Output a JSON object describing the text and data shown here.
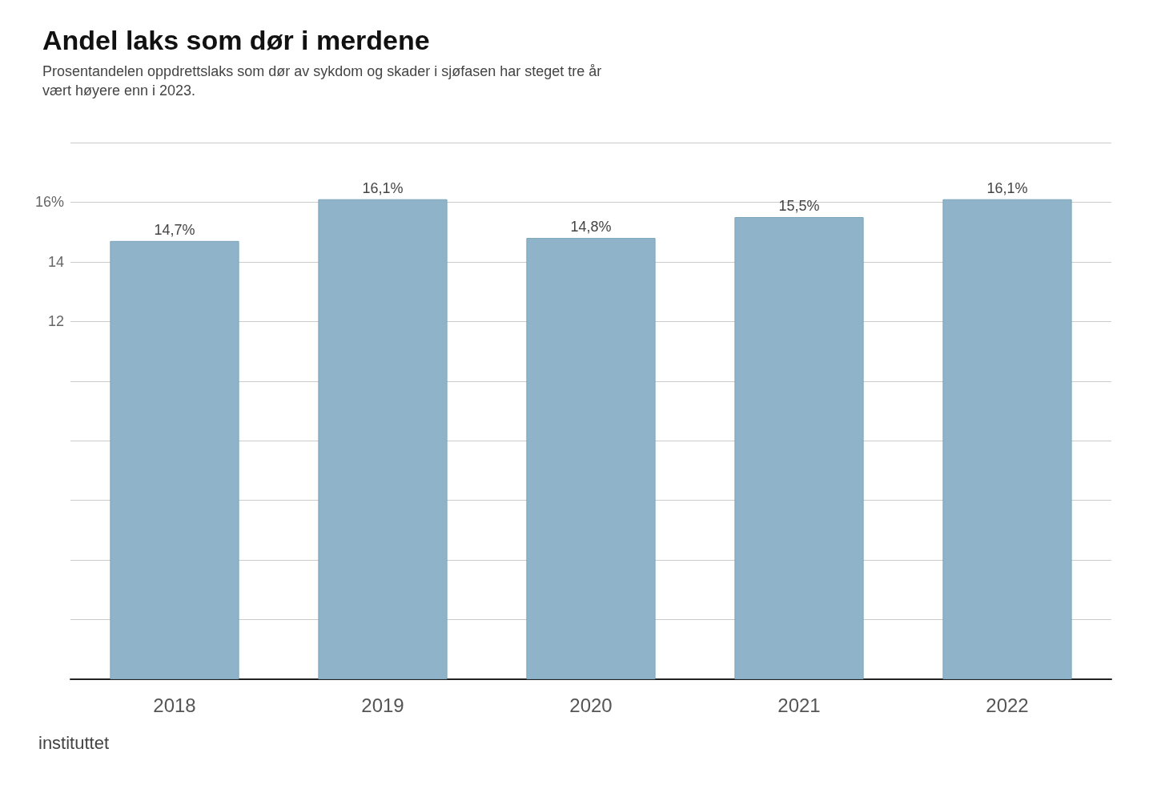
{
  "chart_data": {
    "type": "bar",
    "title": "Andel laks som dør i merdene",
    "subtitle": "Prosentandelen oppdrettslaks som dør av sykdom og skader i sjøfasen har steget tre år\nvært høyere enn i 2023.",
    "categories": [
      "2018",
      "2019",
      "2020",
      "2021",
      "2022"
    ],
    "values": [
      14.7,
      16.1,
      14.8,
      15.5,
      16.1
    ],
    "value_labels": [
      "14,7%",
      "16,1%",
      "14,8%",
      "15,5%",
      "16,1%"
    ],
    "color": "#8fb4c9",
    "ylim": [
      0,
      18
    ],
    "yticks": [
      {
        "value": 0,
        "label": null
      },
      {
        "value": 2,
        "label": null
      },
      {
        "value": 4,
        "label": null
      },
      {
        "value": 6,
        "label": null
      },
      {
        "value": 8,
        "label": null
      },
      {
        "value": 10,
        "label": null
      },
      {
        "value": 12,
        "label": "12"
      },
      {
        "value": 14,
        "label": "14"
      },
      {
        "value": 16,
        "label": "16%"
      },
      {
        "value": 18,
        "label": null
      }
    ],
    "grid": "y",
    "annotations": [
      "instituttet"
    ]
  }
}
